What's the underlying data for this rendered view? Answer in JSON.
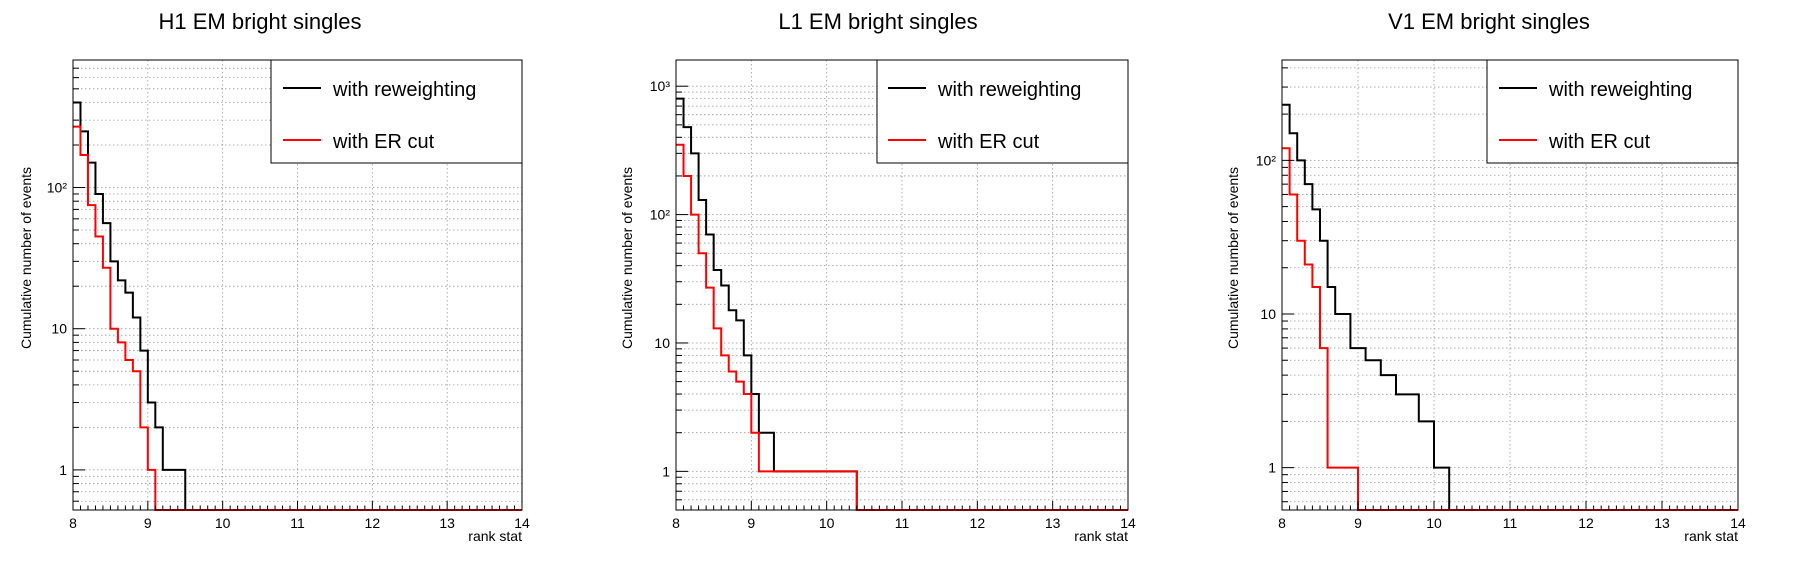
{
  "chart_data": [
    {
      "type": "line",
      "step": true,
      "title": "H1 EM bright singles",
      "xlabel": "rank stat",
      "ylabel": "Cumulative number of events",
      "xlim": [
        8,
        14
      ],
      "ylim": [
        0.52,
        800
      ],
      "yscale": "log",
      "grid": true,
      "xticks": [
        "8",
        "9",
        "10",
        "11",
        "12",
        "13",
        "14"
      ],
      "yticks": [
        "1",
        "10",
        "10²"
      ],
      "legend_position": "top-right",
      "series": [
        {
          "name": "with reweighting",
          "color": "#000000",
          "edges": [
            8.0,
            8.1,
            8.2,
            8.3,
            8.4,
            8.5,
            8.6,
            8.7,
            8.8,
            8.9,
            9.0,
            9.1,
            9.2,
            9.3,
            9.4,
            9.5,
            9.6,
            14.0
          ],
          "values": [
            400,
            250,
            150,
            90,
            56,
            30,
            22,
            18,
            12,
            7,
            3,
            2,
            1,
            1,
            1,
            0,
            0
          ]
        },
        {
          "name": "with ER cut",
          "color": "#ff0000",
          "edges": [
            8.0,
            8.1,
            8.2,
            8.3,
            8.4,
            8.5,
            8.6,
            8.7,
            8.8,
            8.9,
            9.0,
            9.1,
            14.0
          ],
          "values": [
            270,
            170,
            75,
            45,
            27,
            10,
            8,
            6,
            5,
            2,
            1,
            0
          ]
        }
      ]
    },
    {
      "type": "line",
      "step": true,
      "title": "L1 EM bright singles",
      "xlabel": "rank stat",
      "ylabel": "Cumulative number of events",
      "xlim": [
        8,
        14
      ],
      "ylim": [
        0.5,
        1600
      ],
      "yscale": "log",
      "grid": true,
      "xticks": [
        "8",
        "9",
        "10",
        "11",
        "12",
        "13",
        "14"
      ],
      "yticks": [
        "1",
        "10",
        "10²",
        "10³"
      ],
      "legend_position": "top-right",
      "series": [
        {
          "name": "with reweighting",
          "color": "#000000",
          "edges": [
            8.0,
            8.1,
            8.2,
            8.3,
            8.4,
            8.5,
            8.6,
            8.7,
            8.8,
            8.9,
            9.0,
            9.1,
            9.3,
            9.5,
            10.4,
            14.0
          ],
          "values": [
            800,
            480,
            300,
            130,
            70,
            37,
            28,
            18,
            15,
            8,
            4,
            2,
            1,
            1,
            0
          ]
        },
        {
          "name": "with ER cut",
          "color": "#ff0000",
          "edges": [
            8.0,
            8.1,
            8.2,
            8.3,
            8.4,
            8.5,
            8.6,
            8.7,
            8.8,
            8.9,
            9.0,
            9.1,
            10.4,
            14.0
          ],
          "values": [
            350,
            200,
            100,
            50,
            27,
            13,
            8,
            6,
            5,
            4,
            2,
            1,
            0
          ]
        }
      ]
    },
    {
      "type": "line",
      "step": true,
      "title": "V1 EM bright singles",
      "xlabel": "rank stat",
      "ylabel": "Cumulative number of events",
      "xlim": [
        8,
        14
      ],
      "ylim": [
        0.53,
        450
      ],
      "yscale": "log",
      "grid": true,
      "xticks": [
        "8",
        "9",
        "10",
        "11",
        "12",
        "13",
        "14"
      ],
      "yticks": [
        "1",
        "10",
        "10²"
      ],
      "legend_position": "top-right",
      "series": [
        {
          "name": "with reweighting",
          "color": "#000000",
          "edges": [
            8.0,
            8.1,
            8.2,
            8.3,
            8.4,
            8.5,
            8.6,
            8.7,
            8.9,
            9.1,
            9.3,
            9.5,
            9.8,
            10.0,
            10.2,
            14.0
          ],
          "values": [
            230,
            150,
            100,
            70,
            48,
            30,
            15,
            10,
            6,
            5,
            4,
            3,
            2,
            1,
            0
          ]
        },
        {
          "name": "with ER cut",
          "color": "#ff0000",
          "edges": [
            8.0,
            8.1,
            8.2,
            8.3,
            8.4,
            8.5,
            8.6,
            9.0,
            14.0
          ],
          "values": [
            120,
            60,
            30,
            21,
            15,
            6,
            1,
            0
          ]
        }
      ]
    }
  ]
}
